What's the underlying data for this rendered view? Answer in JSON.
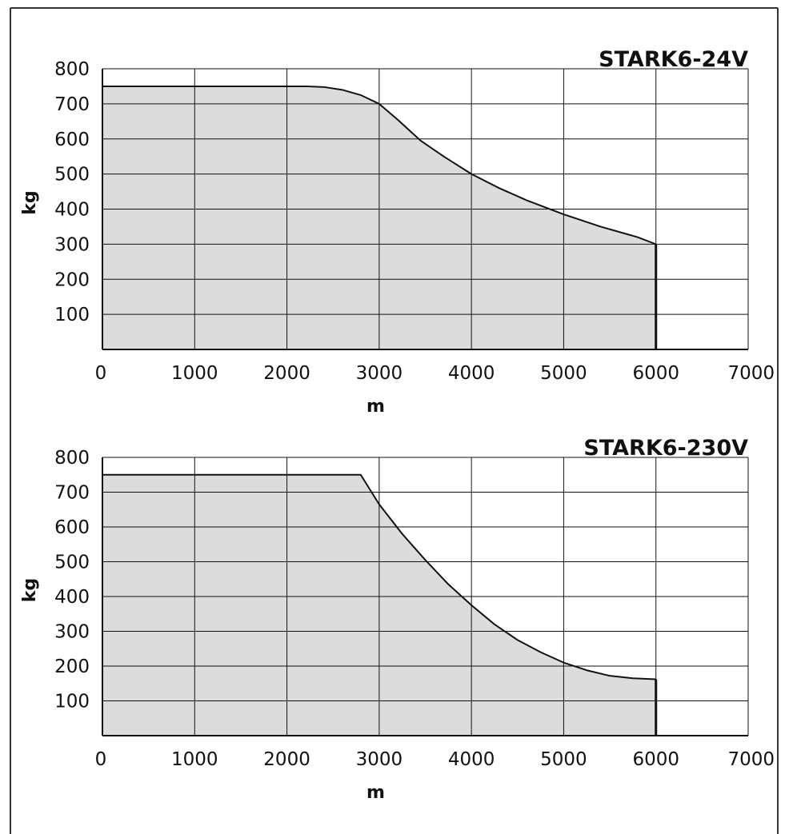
{
  "colors": {
    "fill": "#dcdcdc",
    "line": "#111111",
    "grid": "#111111",
    "frame": "#333333"
  },
  "chart_data": [
    {
      "type": "area",
      "title": "STARK6-24V",
      "xlabel": "m",
      "ylabel": "kg",
      "xlim": [
        0,
        7000
      ],
      "ylim": [
        0,
        800
      ],
      "x_ticks": [
        0,
        1000,
        2000,
        3000,
        4000,
        5000,
        6000,
        7000
      ],
      "y_ticks": [
        100,
        200,
        300,
        400,
        500,
        600,
        700,
        800
      ],
      "grid": true,
      "x": [
        0,
        2000,
        2200,
        2400,
        2600,
        2800,
        3000,
        3200,
        3450,
        3700,
        4000,
        4300,
        4600,
        5000,
        5400,
        5800,
        6000
      ],
      "y": [
        750,
        750,
        750,
        748,
        740,
        725,
        700,
        655,
        595,
        550,
        500,
        460,
        425,
        385,
        350,
        320,
        300
      ]
    },
    {
      "type": "area",
      "title": "STARK6-230V",
      "xlabel": "m",
      "ylabel": "kg",
      "xlim": [
        0,
        7000
      ],
      "ylim": [
        0,
        800
      ],
      "x_ticks": [
        0,
        1000,
        2000,
        3000,
        4000,
        5000,
        6000,
        7000
      ],
      "y_ticks": [
        100,
        200,
        300,
        400,
        500,
        600,
        700,
        800
      ],
      "grid": true,
      "x": [
        0,
        2800,
        3000,
        3250,
        3500,
        3750,
        4000,
        4250,
        4500,
        4750,
        5000,
        5250,
        5500,
        5750,
        6000
      ],
      "y": [
        750,
        750,
        665,
        580,
        505,
        435,
        375,
        320,
        275,
        240,
        210,
        188,
        172,
        165,
        162
      ]
    }
  ]
}
